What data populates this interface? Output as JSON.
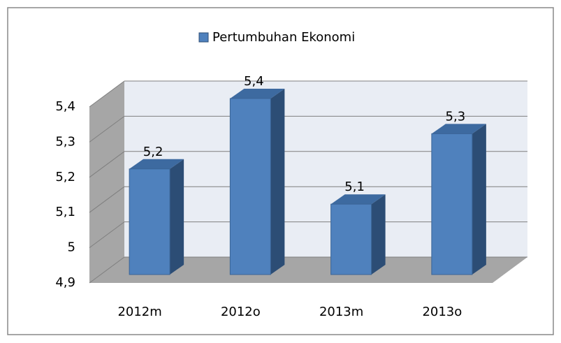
{
  "chart_data": {
    "type": "bar",
    "categories": [
      "2012m",
      "2012o",
      "2013m",
      "2013o"
    ],
    "series": [
      {
        "name": "Pertumbuhan Ekonomi",
        "color": "#4f81bd",
        "values": [
          5.2,
          5.4,
          5.1,
          5.3
        ],
        "value_labels": [
          "5,2",
          "5,4",
          "5,1",
          "5,3"
        ]
      }
    ],
    "ylim": [
      4.9,
      5.4
    ],
    "yticks": [
      {
        "value": 4.9,
        "label": "4,9"
      },
      5,
      {
        "value": 5.1,
        "label": "5,1"
      },
      {
        "value": 5.2,
        "label": "5,2"
      },
      {
        "value": 5.3,
        "label": "5,3"
      },
      {
        "value": 5.4,
        "label": "5,4"
      }
    ],
    "grid": true,
    "legend": "top"
  }
}
